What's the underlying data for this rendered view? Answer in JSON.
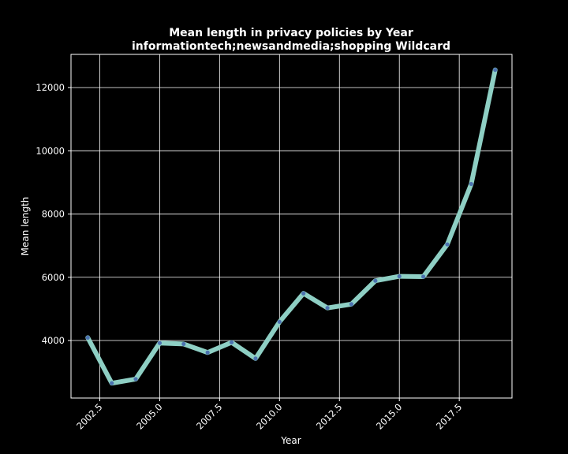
{
  "colors": {
    "background": "#000000",
    "axes_frame": "#ffffff",
    "grid": "#ffffff",
    "line": "#8ecfc4",
    "marker": "#4c72b0",
    "text": "#ffffff"
  },
  "chart_data": {
    "type": "line",
    "title": "Mean length in privacy policies by Year",
    "subtitle": "informationtech;newsandmedia;shopping Wildcard",
    "xlabel": "Year",
    "ylabel": "Mean length",
    "grid": true,
    "xlim": [
      2001.3,
      2019.7
    ],
    "ylim": [
      2180,
      13050
    ],
    "x_ticks": [
      "2002.5",
      "2005.0",
      "2007.5",
      "2010.0",
      "2012.5",
      "2015.0",
      "2017.5"
    ],
    "x_tick_values": [
      2002.5,
      2005.0,
      2007.5,
      2010.0,
      2012.5,
      2015.0,
      2017.5
    ],
    "y_ticks": [
      "4000",
      "6000",
      "8000",
      "10000",
      "12000"
    ],
    "y_tick_values": [
      4000,
      6000,
      8000,
      10000,
      12000
    ],
    "x_tick_rotation": 45,
    "x": [
      2002,
      2003,
      2004,
      2005,
      2006,
      2007,
      2008,
      2009,
      2010,
      2011,
      2012,
      2013,
      2014,
      2015,
      2016,
      2017,
      2018,
      2019
    ],
    "y": [
      4090,
      2650,
      2780,
      3920,
      3890,
      3620,
      3940,
      3430,
      4590,
      5490,
      5030,
      5150,
      5890,
      6030,
      6020,
      7040,
      8950,
      12560
    ]
  }
}
